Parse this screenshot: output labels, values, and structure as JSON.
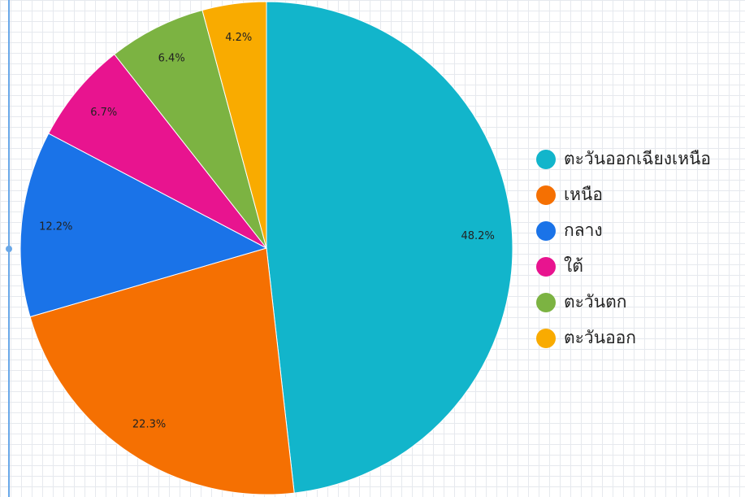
{
  "chart_data": {
    "type": "pie",
    "categories": [
      "ตะวันออกเฉียงเหนือ",
      "เหนือ",
      "กลาง",
      "ใต้",
      "ตะวันตก",
      "ตะวันออก"
    ],
    "values": [
      48.2,
      22.3,
      12.2,
      6.7,
      6.4,
      4.2
    ],
    "value_labels": [
      "48.2%",
      "22.3%",
      "12.2%",
      "6.7%",
      "6.4%",
      "4.2%"
    ],
    "colors": [
      "#12b5cb",
      "#f57002",
      "#1a73e8",
      "#e8148f",
      "#7cb342",
      "#f9ab00"
    ]
  }
}
